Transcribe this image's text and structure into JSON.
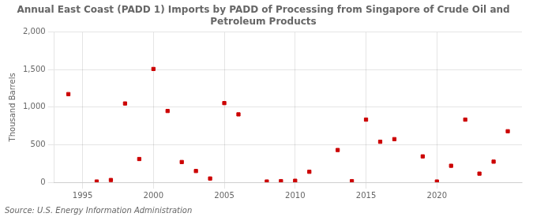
{
  "chart_data": {
    "type": "scatter",
    "title": "Annual East Coast (PADD 1) Imports by PADD of Processing from Singapore of Crude Oil and\nPetroleum Products",
    "ylabel": "Thousand Barrels",
    "annotation": "Source: U.S. Energy Information Administration",
    "color": "#cc0000",
    "marker": "square",
    "grid": true,
    "xlim": [
      1993.0,
      2026.0
    ],
    "xticks": [
      1995,
      2000,
      2005,
      2010,
      2015,
      2020
    ],
    "ylim": [
      0,
      2000
    ],
    "yticks": [
      0,
      500,
      {
        "value": 1000,
        "label": "1,000"
      },
      {
        "value": 1500,
        "label": "1,500"
      },
      {
        "value": 2000,
        "label": "2,000"
      }
    ],
    "x": [
      1994,
      1996,
      1997,
      1998,
      1999,
      2000,
      2001,
      2002,
      2003,
      2004,
      2005,
      2006,
      2008,
      2009,
      2010,
      2011,
      2013,
      2014,
      2015,
      2016,
      2017,
      2019,
      2020,
      2021,
      2022,
      2023,
      2024,
      2025
    ],
    "values": [
      1175,
      10,
      30,
      1050,
      310,
      1510,
      950,
      270,
      150,
      50,
      1055,
      905,
      10,
      15,
      20,
      140,
      430,
      15,
      835,
      540,
      575,
      345,
      10,
      220,
      835,
      115,
      275,
      680
    ]
  }
}
